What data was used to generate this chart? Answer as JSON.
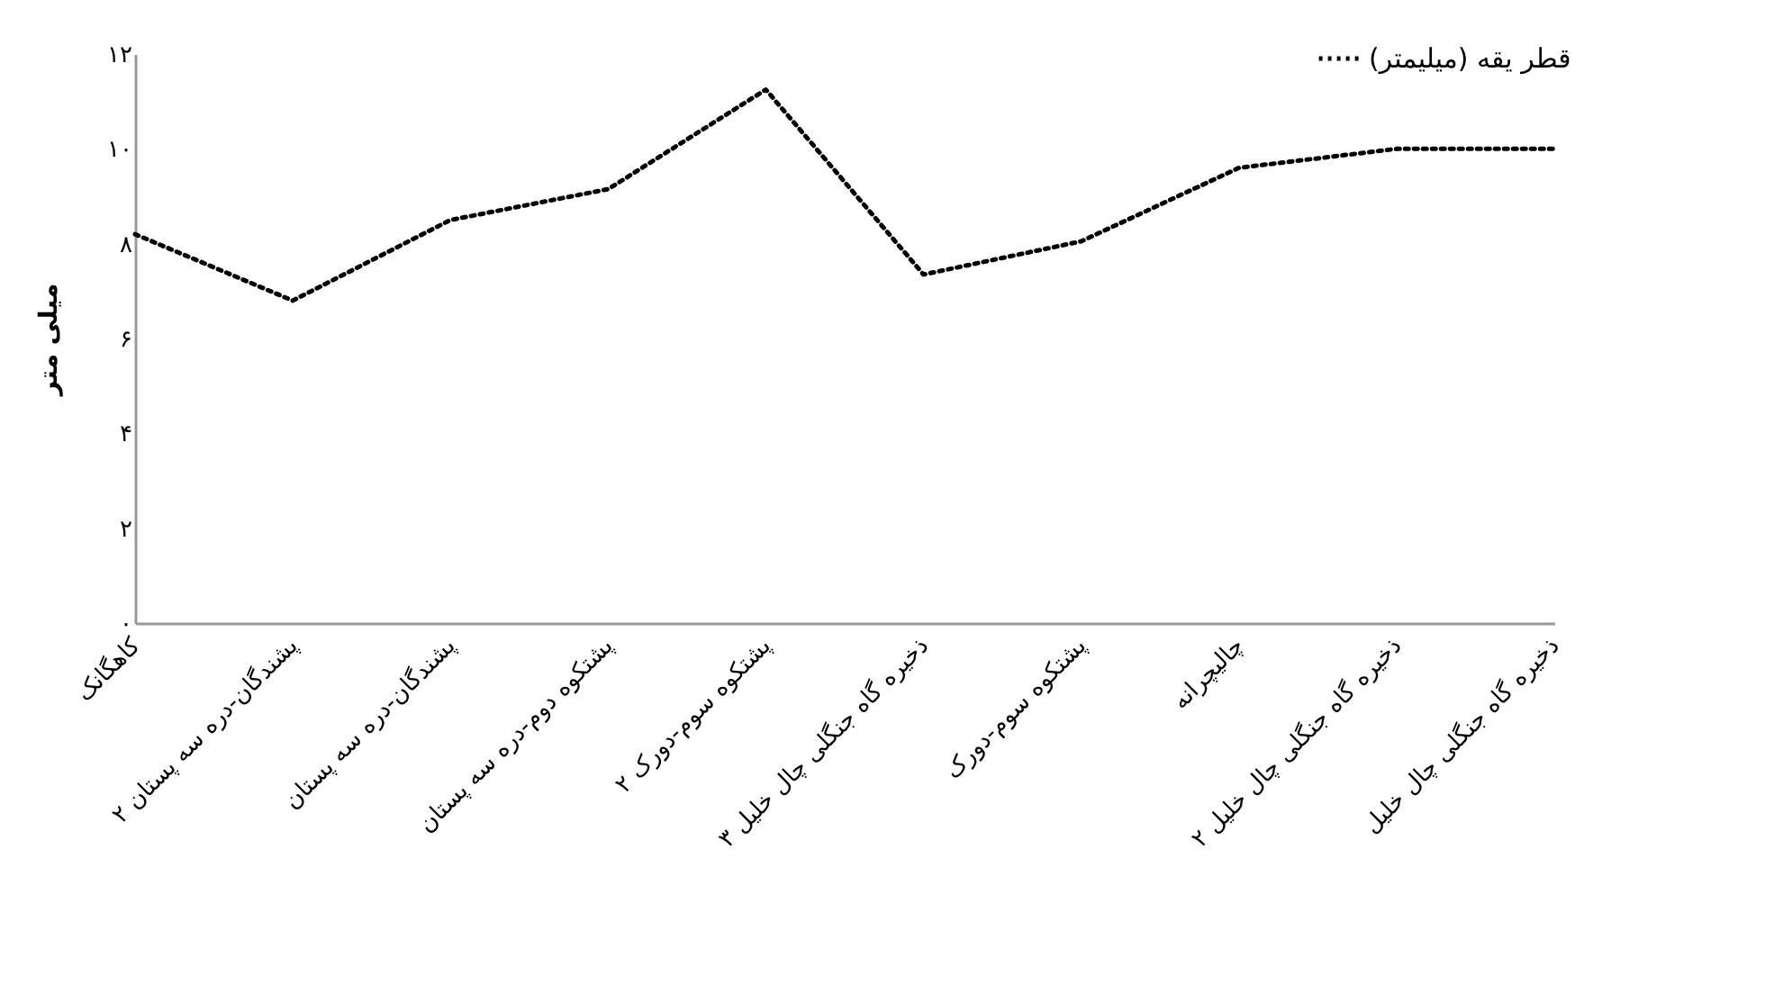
{
  "chart_data": {
    "type": "line",
    "ylabel": "میلی متر",
    "categories": [
      "کاهگانک",
      "پشندگان-دره سه پستان ۲",
      "پشندگان-دره سه پستان",
      "پشتکوه دوم-دره سه پستان",
      "پشتکوه سوم-دورک ۲",
      "ذخیره گاه جنگلی چال خلیل ۳",
      "پشتکوه سوم-دورک",
      "چالیچرانه",
      "ذخیره گاه جنگلی چال خلیل ۲",
      "ذخیره گاه جنگلی چال خلیل"
    ],
    "series": [
      {
        "name": "قطر يقه (میلیمتر)",
        "color": "#000000",
        "values": [
          8.2,
          6.8,
          8.5,
          9.15,
          11.25,
          7.35,
          8.05,
          9.6,
          10.0,
          10.0
        ]
      }
    ],
    "ylim": [
      0,
      12
    ],
    "yticks": [
      {
        "value": 0,
        "label": "۰"
      },
      {
        "value": 2,
        "label": "۲"
      },
      {
        "value": 4,
        "label": "۴"
      },
      {
        "value": 6,
        "label": "۶"
      },
      {
        "value": 8,
        "label": "۸"
      },
      {
        "value": 10,
        "label": "۱۰"
      },
      {
        "value": 12,
        "label": "۱۲"
      }
    ],
    "grid": false,
    "legend": "top right",
    "line_style": "dotted",
    "marker": "none"
  }
}
